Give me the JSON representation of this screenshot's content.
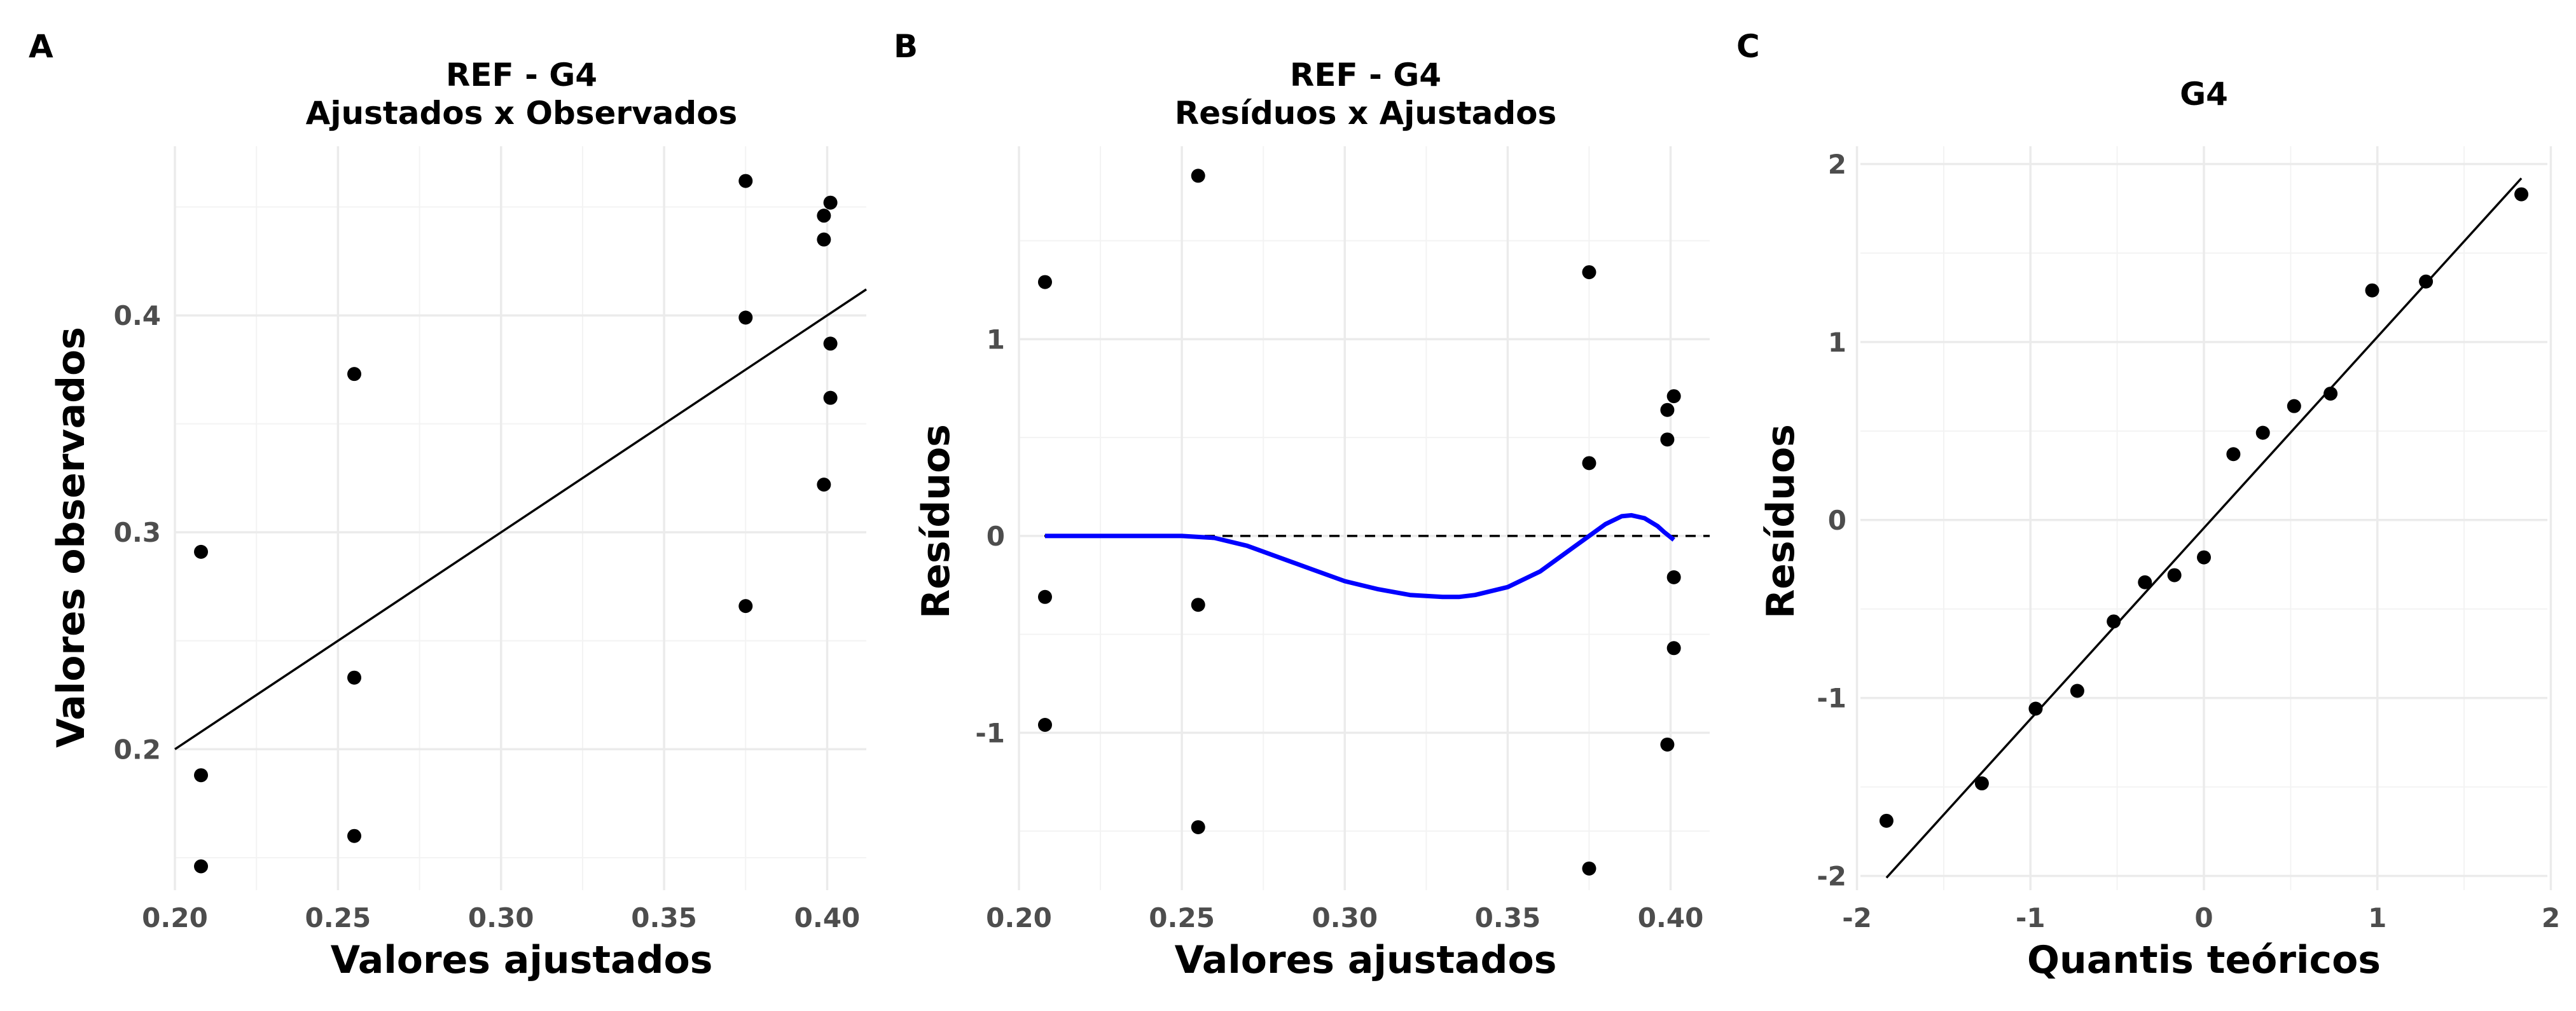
{
  "chart_data": [
    {
      "panel": "A",
      "type": "scatter",
      "title": "REF - G4",
      "subtitle": "Ajustados x Observados",
      "xlabel": "Valores ajustados",
      "ylabel": "Valores observados",
      "xlim": [
        0.2,
        0.412
      ],
      "ylim": [
        0.135,
        0.478
      ],
      "xticks": [
        0.2,
        0.25,
        0.3,
        0.35,
        0.4
      ],
      "xtick_labels": [
        "0.20",
        "0.25",
        "0.30",
        "0.35",
        "0.40"
      ],
      "yticks": [
        0.2,
        0.3,
        0.4
      ],
      "ytick_labels": [
        "0.2",
        "0.3",
        "0.4"
      ],
      "grid": true,
      "points": [
        {
          "x": 0.208,
          "y": 0.291
        },
        {
          "x": 0.208,
          "y": 0.188
        },
        {
          "x": 0.208,
          "y": 0.146
        },
        {
          "x": 0.255,
          "y": 0.373
        },
        {
          "x": 0.255,
          "y": 0.233
        },
        {
          "x": 0.255,
          "y": 0.16
        },
        {
          "x": 0.375,
          "y": 0.462
        },
        {
          "x": 0.375,
          "y": 0.399
        },
        {
          "x": 0.375,
          "y": 0.266
        },
        {
          "x": 0.399,
          "y": 0.446
        },
        {
          "x": 0.399,
          "y": 0.435
        },
        {
          "x": 0.399,
          "y": 0.322
        },
        {
          "x": 0.401,
          "y": 0.452
        },
        {
          "x": 0.401,
          "y": 0.387
        },
        {
          "x": 0.401,
          "y": 0.362
        }
      ],
      "reference_line": {
        "x": [
          0.2,
          0.412
        ],
        "y": [
          0.2,
          0.412
        ],
        "color": "#000000"
      }
    },
    {
      "panel": "B",
      "type": "scatter",
      "title": "REF - G4",
      "subtitle": "Resíduos x Ajustados",
      "xlabel": "Valores ajustados",
      "ylabel": "Resíduos",
      "xlim": [
        0.2,
        0.412
      ],
      "ylim": [
        -1.8,
        1.98
      ],
      "xticks": [
        0.2,
        0.25,
        0.3,
        0.35,
        0.4
      ],
      "xtick_labels": [
        "0.20",
        "0.25",
        "0.30",
        "0.35",
        "0.40"
      ],
      "yticks": [
        -1,
        0,
        1
      ],
      "ytick_labels": [
        "-1",
        "0",
        "1"
      ],
      "grid": true,
      "points": [
        {
          "x": 0.208,
          "y": 1.29
        },
        {
          "x": 0.208,
          "y": -0.31
        },
        {
          "x": 0.208,
          "y": -0.96
        },
        {
          "x": 0.255,
          "y": 1.83
        },
        {
          "x": 0.255,
          "y": -0.35
        },
        {
          "x": 0.255,
          "y": -1.48
        },
        {
          "x": 0.375,
          "y": 1.34
        },
        {
          "x": 0.375,
          "y": 0.37
        },
        {
          "x": 0.375,
          "y": -1.69
        },
        {
          "x": 0.399,
          "y": 0.64
        },
        {
          "x": 0.399,
          "y": 0.49
        },
        {
          "x": 0.399,
          "y": -1.06
        },
        {
          "x": 0.401,
          "y": 0.71
        },
        {
          "x": 0.401,
          "y": -0.21
        },
        {
          "x": 0.401,
          "y": -0.57
        }
      ],
      "zero_line": {
        "y": 0,
        "style": "dashed",
        "color": "#000000"
      },
      "smooth_line": {
        "color": "#0000ff",
        "x": [
          0.208,
          0.22,
          0.235,
          0.25,
          0.26,
          0.27,
          0.28,
          0.29,
          0.3,
          0.31,
          0.32,
          0.33,
          0.335,
          0.34,
          0.35,
          0.36,
          0.365,
          0.37,
          0.375,
          0.38,
          0.385,
          0.388,
          0.392,
          0.396,
          0.398,
          0.401
        ],
        "y": [
          0.0,
          0.0,
          0.0,
          0.0,
          -0.01,
          -0.05,
          -0.11,
          -0.17,
          -0.23,
          -0.27,
          -0.3,
          -0.31,
          -0.31,
          -0.3,
          -0.26,
          -0.18,
          -0.12,
          -0.06,
          0.0,
          0.06,
          0.1,
          0.105,
          0.09,
          0.05,
          0.02,
          -0.02
        ]
      }
    },
    {
      "panel": "C",
      "type": "scatter",
      "title": "G4",
      "subtitle": "",
      "xlabel": "Quantis teóricos",
      "ylabel": "Resíduos",
      "xlim": [
        -1.98,
        1.98
      ],
      "ylim": [
        -2.08,
        2.1
      ],
      "xticks": [
        -2,
        -1,
        0,
        1,
        2
      ],
      "xtick_labels": [
        "-2",
        "-1",
        "0",
        "1",
        "2"
      ],
      "yticks": [
        -2,
        -1,
        0,
        1,
        2
      ],
      "ytick_labels": [
        "-2",
        "-1",
        "0",
        "1",
        "2"
      ],
      "grid": true,
      "points": [
        {
          "x": -1.83,
          "y": -1.69
        },
        {
          "x": -1.28,
          "y": -1.48
        },
        {
          "x": -0.97,
          "y": -1.06
        },
        {
          "x": -0.73,
          "y": -0.96
        },
        {
          "x": -0.52,
          "y": -0.57
        },
        {
          "x": -0.34,
          "y": -0.35
        },
        {
          "x": -0.17,
          "y": -0.31
        },
        {
          "x": 0.0,
          "y": -0.21
        },
        {
          "x": 0.17,
          "y": 0.37
        },
        {
          "x": 0.34,
          "y": 0.49
        },
        {
          "x": 0.52,
          "y": 0.64
        },
        {
          "x": 0.73,
          "y": 0.71
        },
        {
          "x": 0.97,
          "y": 1.29
        },
        {
          "x": 1.28,
          "y": 1.34
        },
        {
          "x": 1.83,
          "y": 1.83
        }
      ],
      "reference_line": {
        "x": [
          -1.83,
          1.83
        ],
        "y": [
          -2.01,
          1.92
        ],
        "color": "#000000"
      }
    }
  ]
}
